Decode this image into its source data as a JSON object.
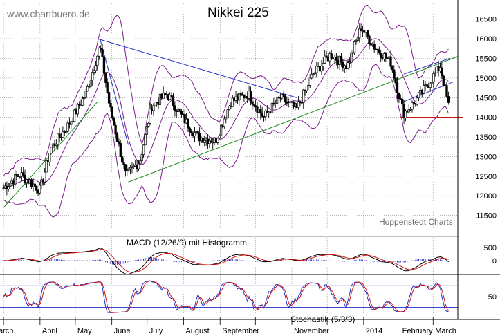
{
  "header": {
    "site": "www.chartbuero.de",
    "title": "Nikkei 225",
    "credit": "Hoppenstedt Charts"
  },
  "chart_data": [
    {
      "type": "candlestick",
      "title": "Nikkei 225",
      "y_axis": "right",
      "ylim": [
        11000,
        16900
      ],
      "yticks": [
        11500,
        12000,
        12500,
        13000,
        13500,
        14000,
        14500,
        15000,
        15500,
        16000,
        16500
      ],
      "x_labels": [
        "arch",
        "April",
        "May",
        "June",
        "July",
        "August",
        "September",
        "November",
        "2014",
        "February",
        "March"
      ],
      "grid": true,
      "closes": [
        {
          "date": "2013-03-01",
          "value": 12200
        },
        {
          "date": "2013-03-15",
          "value": 12550
        },
        {
          "date": "2013-04-01",
          "value": 12150
        },
        {
          "date": "2013-04-10",
          "value": 13200
        },
        {
          "date": "2013-04-25",
          "value": 13800
        },
        {
          "date": "2013-05-10",
          "value": 14600
        },
        {
          "date": "2013-05-22",
          "value": 15800
        },
        {
          "date": "2013-05-30",
          "value": 14300
        },
        {
          "date": "2013-06-13",
          "value": 12500
        },
        {
          "date": "2013-06-25",
          "value": 12900
        },
        {
          "date": "2013-07-05",
          "value": 14300
        },
        {
          "date": "2013-07-18",
          "value": 14600
        },
        {
          "date": "2013-07-31",
          "value": 14000
        },
        {
          "date": "2013-08-13",
          "value": 13500
        },
        {
          "date": "2013-08-28",
          "value": 13400
        },
        {
          "date": "2013-09-10",
          "value": 14400
        },
        {
          "date": "2013-09-25",
          "value": 14600
        },
        {
          "date": "2013-10-08",
          "value": 14000
        },
        {
          "date": "2013-10-22",
          "value": 14500
        },
        {
          "date": "2013-11-05",
          "value": 14200
        },
        {
          "date": "2013-11-19",
          "value": 15100
        },
        {
          "date": "2013-12-04",
          "value": 15600
        },
        {
          "date": "2013-12-18",
          "value": 15300
        },
        {
          "date": "2013-12-30",
          "value": 16300
        },
        {
          "date": "2014-01-10",
          "value": 15800
        },
        {
          "date": "2014-01-24",
          "value": 15400
        },
        {
          "date": "2014-02-04",
          "value": 14100
        },
        {
          "date": "2014-02-14",
          "value": 14400
        },
        {
          "date": "2014-02-26",
          "value": 14900
        },
        {
          "date": "2014-03-07",
          "value": 15300
        },
        {
          "date": "2014-03-14",
          "value": 14300
        }
      ],
      "support_level": 14000,
      "indicators": [
        "Bollinger Bands",
        "trend lines"
      ]
    },
    {
      "type": "line",
      "title": "MACD (12/26/9) mit Histogramm",
      "yticks": [
        0,
        500
      ]
    },
    {
      "type": "line",
      "title": "Stochastik (5/3/3)",
      "yticks": [
        50
      ]
    }
  ]
}
